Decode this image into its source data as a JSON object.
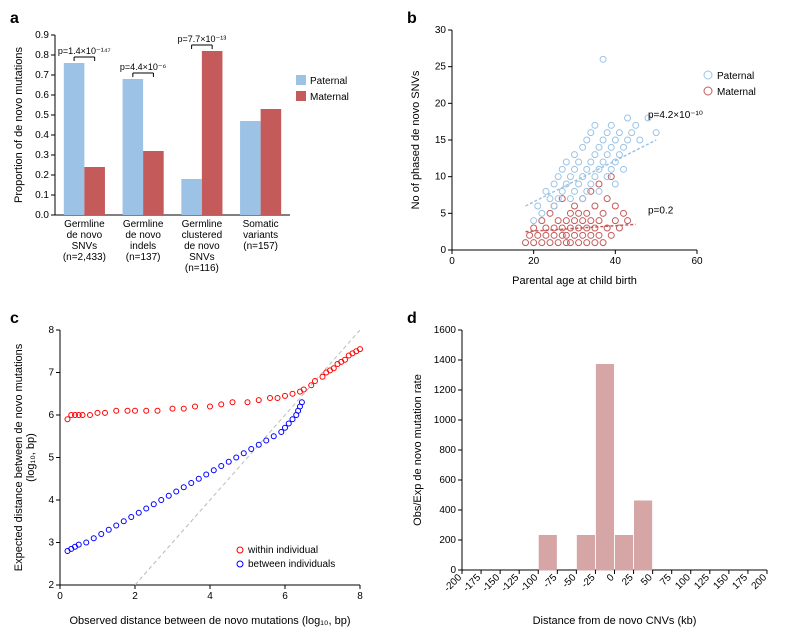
{
  "colors": {
    "paternal": "#9cc3e6",
    "maternal": "#c55a5a",
    "within": "#ff0000",
    "between": "#0000ff",
    "hist": "#d6a5a5",
    "axis": "#000000",
    "grid": "#ffffff",
    "bg": "#ffffff"
  },
  "panel_a": {
    "label": "a",
    "ylabel": "Proportion of de novo mutations",
    "ylim": [
      0,
      0.9
    ],
    "ytick_step": 0.1,
    "categories": [
      "Germline\nde novo\nSNVs\n(n=2,433)",
      "Germline\nde novo\nindels\n(n=137)",
      "Germline\nclustered\nde novo\nSNVs\n(n=116)",
      "Somatic\nvariants\n(n=157)"
    ],
    "paternal": [
      0.76,
      0.68,
      0.18,
      0.47
    ],
    "maternal": [
      0.24,
      0.32,
      0.82,
      0.53
    ],
    "pvalues": [
      "p=1.4×10⁻¹⁴⁷",
      "p=4.4×10⁻⁶",
      "p=7.7×10⁻¹³",
      ""
    ],
    "legend": [
      "Paternal",
      "Maternal"
    ],
    "bar_width": 0.35
  },
  "panel_b": {
    "label": "b",
    "xlabel": "Parental age at child birth",
    "ylabel": "No of phased de novo SNVs",
    "xlim": [
      0,
      60
    ],
    "ylim": [
      0,
      30
    ],
    "xtick_step": 20,
    "ytick_step": 5,
    "legend": [
      "Paternal",
      "Maternal"
    ],
    "p_paternal": "p=4.2×10⁻¹⁰",
    "p_maternal": "p=0.2",
    "paternal_points": [
      [
        20,
        4
      ],
      [
        21,
        6
      ],
      [
        22,
        5
      ],
      [
        23,
        8
      ],
      [
        24,
        7
      ],
      [
        25,
        6
      ],
      [
        25,
        9
      ],
      [
        26,
        10
      ],
      [
        26,
        7
      ],
      [
        27,
        8
      ],
      [
        27,
        11
      ],
      [
        28,
        9
      ],
      [
        28,
        12
      ],
      [
        29,
        10
      ],
      [
        29,
        7
      ],
      [
        30,
        11
      ],
      [
        30,
        8
      ],
      [
        30,
        13
      ],
      [
        31,
        9
      ],
      [
        31,
        12
      ],
      [
        32,
        10
      ],
      [
        32,
        14
      ],
      [
        32,
        7
      ],
      [
        33,
        11
      ],
      [
        33,
        8
      ],
      [
        33,
        15
      ],
      [
        34,
        12
      ],
      [
        34,
        9
      ],
      [
        34,
        16
      ],
      [
        35,
        10
      ],
      [
        35,
        13
      ],
      [
        35,
        17
      ],
      [
        36,
        11
      ],
      [
        36,
        14
      ],
      [
        36,
        8
      ],
      [
        37,
        12
      ],
      [
        37,
        15
      ],
      [
        37,
        26
      ],
      [
        38,
        13
      ],
      [
        38,
        10
      ],
      [
        38,
        16
      ],
      [
        39,
        14
      ],
      [
        39,
        11
      ],
      [
        39,
        17
      ],
      [
        40,
        12
      ],
      [
        40,
        15
      ],
      [
        40,
        9
      ],
      [
        41,
        13
      ],
      [
        41,
        16
      ],
      [
        42,
        14
      ],
      [
        42,
        11
      ],
      [
        43,
        15
      ],
      [
        43,
        18
      ],
      [
        44,
        16
      ],
      [
        45,
        17
      ],
      [
        46,
        15
      ],
      [
        48,
        18
      ],
      [
        50,
        16
      ]
    ],
    "maternal_points": [
      [
        18,
        1
      ],
      [
        19,
        2
      ],
      [
        20,
        1
      ],
      [
        20,
        3
      ],
      [
        21,
        2
      ],
      [
        22,
        1
      ],
      [
        22,
        4
      ],
      [
        23,
        2
      ],
      [
        23,
        3
      ],
      [
        24,
        1
      ],
      [
        24,
        5
      ],
      [
        25,
        2
      ],
      [
        25,
        3
      ],
      [
        25,
        6
      ],
      [
        26,
        1
      ],
      [
        26,
        4
      ],
      [
        27,
        2
      ],
      [
        27,
        3
      ],
      [
        27,
        7
      ],
      [
        28,
        1
      ],
      [
        28,
        4
      ],
      [
        28,
        2
      ],
      [
        29,
        3
      ],
      [
        29,
        5
      ],
      [
        29,
        1
      ],
      [
        30,
        2
      ],
      [
        30,
        4
      ],
      [
        30,
        6
      ],
      [
        31,
        1
      ],
      [
        31,
        3
      ],
      [
        31,
        5
      ],
      [
        32,
        2
      ],
      [
        32,
        4
      ],
      [
        32,
        7
      ],
      [
        33,
        1
      ],
      [
        33,
        3
      ],
      [
        33,
        5
      ],
      [
        34,
        2
      ],
      [
        34,
        4
      ],
      [
        34,
        8
      ],
      [
        35,
        1
      ],
      [
        35,
        3
      ],
      [
        35,
        6
      ],
      [
        36,
        2
      ],
      [
        36,
        4
      ],
      [
        36,
        9
      ],
      [
        37,
        1
      ],
      [
        37,
        5
      ],
      [
        38,
        3
      ],
      [
        38,
        7
      ],
      [
        39,
        2
      ],
      [
        39,
        10
      ],
      [
        40,
        4
      ],
      [
        40,
        6
      ],
      [
        41,
        3
      ],
      [
        42,
        5
      ],
      [
        43,
        4
      ]
    ],
    "paternal_trend": [
      [
        18,
        6
      ],
      [
        50,
        15
      ]
    ],
    "maternal_trend": [
      [
        18,
        2.5
      ],
      [
        45,
        3.5
      ]
    ]
  },
  "panel_c": {
    "label": "c",
    "xlabel": "Observed distance between de novo mutations (log₁₀, bp)",
    "ylabel": "Expected distance between de novo mutations\n(log₁₀, bp)",
    "xlim": [
      0,
      8
    ],
    "ylim": [
      2,
      8
    ],
    "xtick_step": 2,
    "ytick_step": 1,
    "legend": [
      "within individual",
      "between individuals"
    ],
    "within_points": [
      [
        0.2,
        5.9
      ],
      [
        0.3,
        6.0
      ],
      [
        0.4,
        6.0
      ],
      [
        0.5,
        6.0
      ],
      [
        0.6,
        6.0
      ],
      [
        0.8,
        6.0
      ],
      [
        1.0,
        6.05
      ],
      [
        1.2,
        6.05
      ],
      [
        1.5,
        6.1
      ],
      [
        1.8,
        6.1
      ],
      [
        2.0,
        6.1
      ],
      [
        2.3,
        6.1
      ],
      [
        2.6,
        6.1
      ],
      [
        3.0,
        6.15
      ],
      [
        3.3,
        6.15
      ],
      [
        3.6,
        6.2
      ],
      [
        4.0,
        6.2
      ],
      [
        4.3,
        6.25
      ],
      [
        4.6,
        6.3
      ],
      [
        5.0,
        6.3
      ],
      [
        5.3,
        6.35
      ],
      [
        5.6,
        6.4
      ],
      [
        5.8,
        6.4
      ],
      [
        6.0,
        6.45
      ],
      [
        6.2,
        6.5
      ],
      [
        6.4,
        6.55
      ],
      [
        6.5,
        6.6
      ],
      [
        6.7,
        6.7
      ],
      [
        6.8,
        6.8
      ],
      [
        7.0,
        6.9
      ],
      [
        7.1,
        7.0
      ],
      [
        7.2,
        7.05
      ],
      [
        7.3,
        7.1
      ],
      [
        7.4,
        7.2
      ],
      [
        7.5,
        7.25
      ],
      [
        7.6,
        7.3
      ],
      [
        7.7,
        7.4
      ],
      [
        7.8,
        7.45
      ],
      [
        7.9,
        7.5
      ],
      [
        8.0,
        7.55
      ]
    ],
    "between_points": [
      [
        0.2,
        2.8
      ],
      [
        0.3,
        2.85
      ],
      [
        0.4,
        2.9
      ],
      [
        0.5,
        2.95
      ],
      [
        0.7,
        3.0
      ],
      [
        0.9,
        3.1
      ],
      [
        1.1,
        3.2
      ],
      [
        1.3,
        3.3
      ],
      [
        1.5,
        3.4
      ],
      [
        1.7,
        3.5
      ],
      [
        1.9,
        3.6
      ],
      [
        2.1,
        3.7
      ],
      [
        2.3,
        3.8
      ],
      [
        2.5,
        3.9
      ],
      [
        2.7,
        4.0
      ],
      [
        2.9,
        4.1
      ],
      [
        3.1,
        4.2
      ],
      [
        3.3,
        4.3
      ],
      [
        3.5,
        4.4
      ],
      [
        3.7,
        4.5
      ],
      [
        3.9,
        4.6
      ],
      [
        4.1,
        4.7
      ],
      [
        4.3,
        4.8
      ],
      [
        4.5,
        4.9
      ],
      [
        4.7,
        5.0
      ],
      [
        4.9,
        5.1
      ],
      [
        5.1,
        5.2
      ],
      [
        5.3,
        5.3
      ],
      [
        5.5,
        5.4
      ],
      [
        5.7,
        5.5
      ],
      [
        5.9,
        5.6
      ],
      [
        6.0,
        5.7
      ],
      [
        6.1,
        5.8
      ],
      [
        6.2,
        5.9
      ],
      [
        6.3,
        6.0
      ],
      [
        6.35,
        6.1
      ],
      [
        6.4,
        6.2
      ],
      [
        6.45,
        6.3
      ]
    ]
  },
  "panel_d": {
    "label": "d",
    "xlabel": "Distance from de novo CNVs (kb)",
    "ylabel": "Obs/Exp de novo mutation rate",
    "ylim": [
      0,
      1600
    ],
    "ytick_step": 200,
    "xlabels": [
      "-200",
      "-175",
      "-150",
      "-125",
      "-100",
      "-75",
      "-50",
      "-25",
      "0",
      "25",
      "50",
      "75",
      "100",
      "125",
      "150",
      "175",
      "200"
    ],
    "bars": [
      0,
      0,
      0,
      0,
      230,
      0,
      230,
      1370,
      230,
      460,
      0,
      0,
      0,
      0,
      0,
      0
    ],
    "bar_width": 0.9
  }
}
